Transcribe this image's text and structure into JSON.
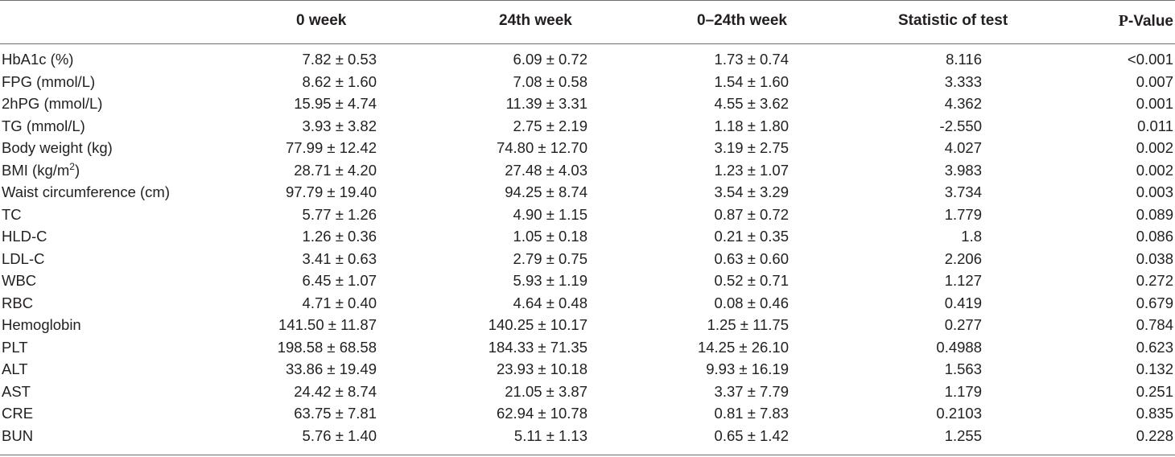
{
  "headers": {
    "col1": "0 week",
    "col2": "24th week",
    "col3": "0–24th week",
    "col4": "Statistic of test",
    "col5_p": "P",
    "col5_rest": "-Value"
  },
  "rows": [
    {
      "name": "HbA1c (%)",
      "w0": "7.82 ± 0.53",
      "w24": "6.09 ± 0.72",
      "diff": "1.73 ± 0.74",
      "stat": "8.116",
      "p": "<0.001"
    },
    {
      "name": "FPG (mmol/L)",
      "w0": "8.62 ± 1.60",
      "w24": "7.08 ± 0.58",
      "diff": "1.54 ± 1.60",
      "stat": "3.333",
      "p": "0.007"
    },
    {
      "name": "2hPG (mmol/L)",
      "w0": "15.95 ± 4.74",
      "w24": "11.39 ± 3.31",
      "diff": "4.55 ± 3.62",
      "stat": "4.362",
      "p": "0.001"
    },
    {
      "name": "TG (mmol/L)",
      "w0": "3.93 ± 3.82",
      "w24": "2.75 ± 2.19",
      "diff": "1.18 ± 1.80",
      "stat": "-2.550",
      "p": "0.011"
    },
    {
      "name": "Body weight (kg)",
      "w0": "77.99 ± 12.42",
      "w24": "74.80 ± 12.70",
      "diff": "3.19 ± 2.75",
      "stat": "4.027",
      "p": "0.002"
    },
    {
      "name_pre": "BMI (kg/m",
      "name_sup": "2",
      "name_post": ")",
      "w0": "28.71 ± 4.20",
      "w24": "27.48 ± 4.03",
      "diff": "1.23 ± 1.07",
      "stat": "3.983",
      "p": "0.002"
    },
    {
      "name": "Waist circumference (cm)",
      "w0": "97.79 ± 19.40",
      "w24": "94.25 ± 8.74",
      "diff": "3.54 ± 3.29",
      "stat": "3.734",
      "p": "0.003"
    },
    {
      "name": "TC",
      "w0": "5.77 ± 1.26",
      "w24": "4.90 ± 1.15",
      "diff": "0.87 ± 0.72",
      "stat": "1.779",
      "p": "0.089"
    },
    {
      "name": "HLD-C",
      "w0": "1.26 ± 0.36",
      "w24": "1.05 ± 0.18",
      "diff": "0.21 ± 0.35",
      "stat": "1.8",
      "p": "0.086"
    },
    {
      "name": "LDL-C",
      "w0": "3.41 ± 0.63",
      "w24": "2.79 ± 0.75",
      "diff": "0.63 ± 0.60",
      "stat": "2.206",
      "p": "0.038"
    },
    {
      "name": "WBC",
      "w0": "6.45 ± 1.07",
      "w24": "5.93 ± 1.19",
      "diff": "0.52 ± 0.71",
      "stat": "1.127",
      "p": "0.272"
    },
    {
      "name": "RBC",
      "w0": "4.71 ± 0.40",
      "w24": "4.64 ± 0.48",
      "diff": "0.08 ± 0.46",
      "stat": "0.419",
      "p": "0.679"
    },
    {
      "name": "Hemoglobin",
      "w0": "141.50 ± 11.87",
      "w24": "140.25 ± 10.17",
      "diff": "1.25 ± 11.75",
      "stat": "0.277",
      "p": "0.784"
    },
    {
      "name": "PLT",
      "w0": "198.58 ± 68.58",
      "w24": "184.33 ± 71.35",
      "diff": "14.25 ± 26.10",
      "stat": "0.4988",
      "p": "0.623"
    },
    {
      "name": "ALT",
      "w0": "33.86 ± 19.49",
      "w24": "23.93 ± 10.18",
      "diff": "9.93 ± 16.19",
      "stat": "1.563",
      "p": "0.132"
    },
    {
      "name": "AST",
      "w0": "24.42 ± 8.74",
      "w24": "21.05 ± 3.87",
      "diff": "3.37 ± 7.79",
      "stat": "1.179",
      "p": "0.251"
    },
    {
      "name": "CRE",
      "w0": "63.75 ± 7.81",
      "w24": "62.94 ± 10.78",
      "diff": "0.81 ± 7.83",
      "stat": "0.2103",
      "p": "0.835"
    },
    {
      "name": "BUN",
      "w0": "5.76 ± 1.40",
      "w24": "5.11 ± 1.13",
      "diff": "0.65 ± 1.42",
      "stat": "1.255",
      "p": "0.228"
    }
  ]
}
